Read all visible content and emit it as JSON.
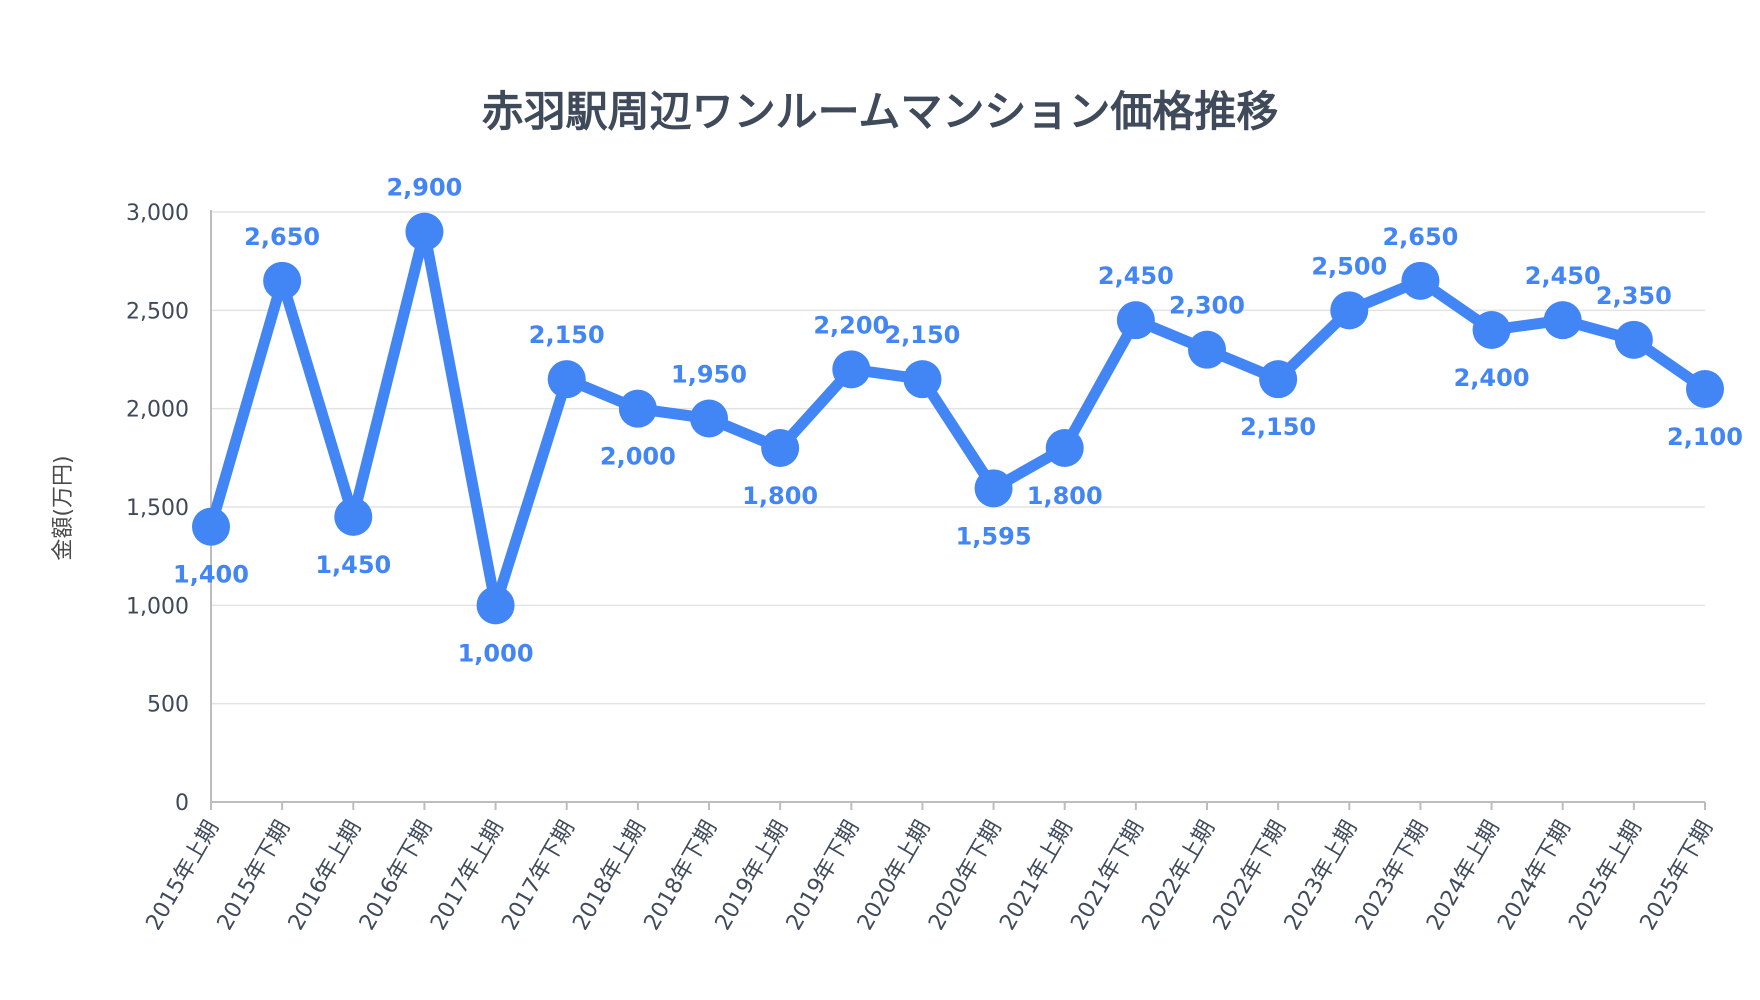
{
  "chart_data": {
    "type": "line",
    "title": "赤羽駅周辺ワンルームマンション価格推移",
    "xlabel": "",
    "ylabel": "金額(万円)",
    "ylim": [
      0,
      3000
    ],
    "yticks": [
      0,
      500,
      1000,
      1500,
      2000,
      2500,
      3000
    ],
    "ytick_labels": [
      "0",
      "500",
      "1,000",
      "1,500",
      "2,000",
      "2,500",
      "3,000"
    ],
    "grid": true,
    "legend": "none",
    "color": "#4285f4",
    "categories": [
      "2015年上期",
      "2015年下期",
      "2016年上期",
      "2016年下期",
      "2017年上期",
      "2017年下期",
      "2018年上期",
      "2018年下期",
      "2019年上期",
      "2019年下期",
      "2020年上期",
      "2020年下期",
      "2021年上期",
      "2021年下期",
      "2022年上期",
      "2022年下期",
      "2023年上期",
      "2023年下期",
      "2024年上期",
      "2024年下期",
      "2025年上期",
      "2025年下期"
    ],
    "series": [
      {
        "values": [
          1400,
          2650,
          1450,
          2900,
          1000,
          2150,
          2000,
          1950,
          1800,
          2200,
          2150,
          1595,
          1800,
          2450,
          2300,
          2150,
          2500,
          2650,
          2400,
          2450,
          2350,
          2100
        ],
        "labels": [
          "1,400",
          "2,650",
          "1,450",
          "2,900",
          "1,000",
          "2,150",
          "2,000",
          "1,950",
          "1,800",
          "2,200",
          "2,150",
          "1,595",
          "1,800",
          "2,450",
          "2,300",
          "2,150",
          "2,500",
          "2,650",
          "2,400",
          "2,450",
          "2,350",
          "2,100"
        ]
      }
    ]
  }
}
